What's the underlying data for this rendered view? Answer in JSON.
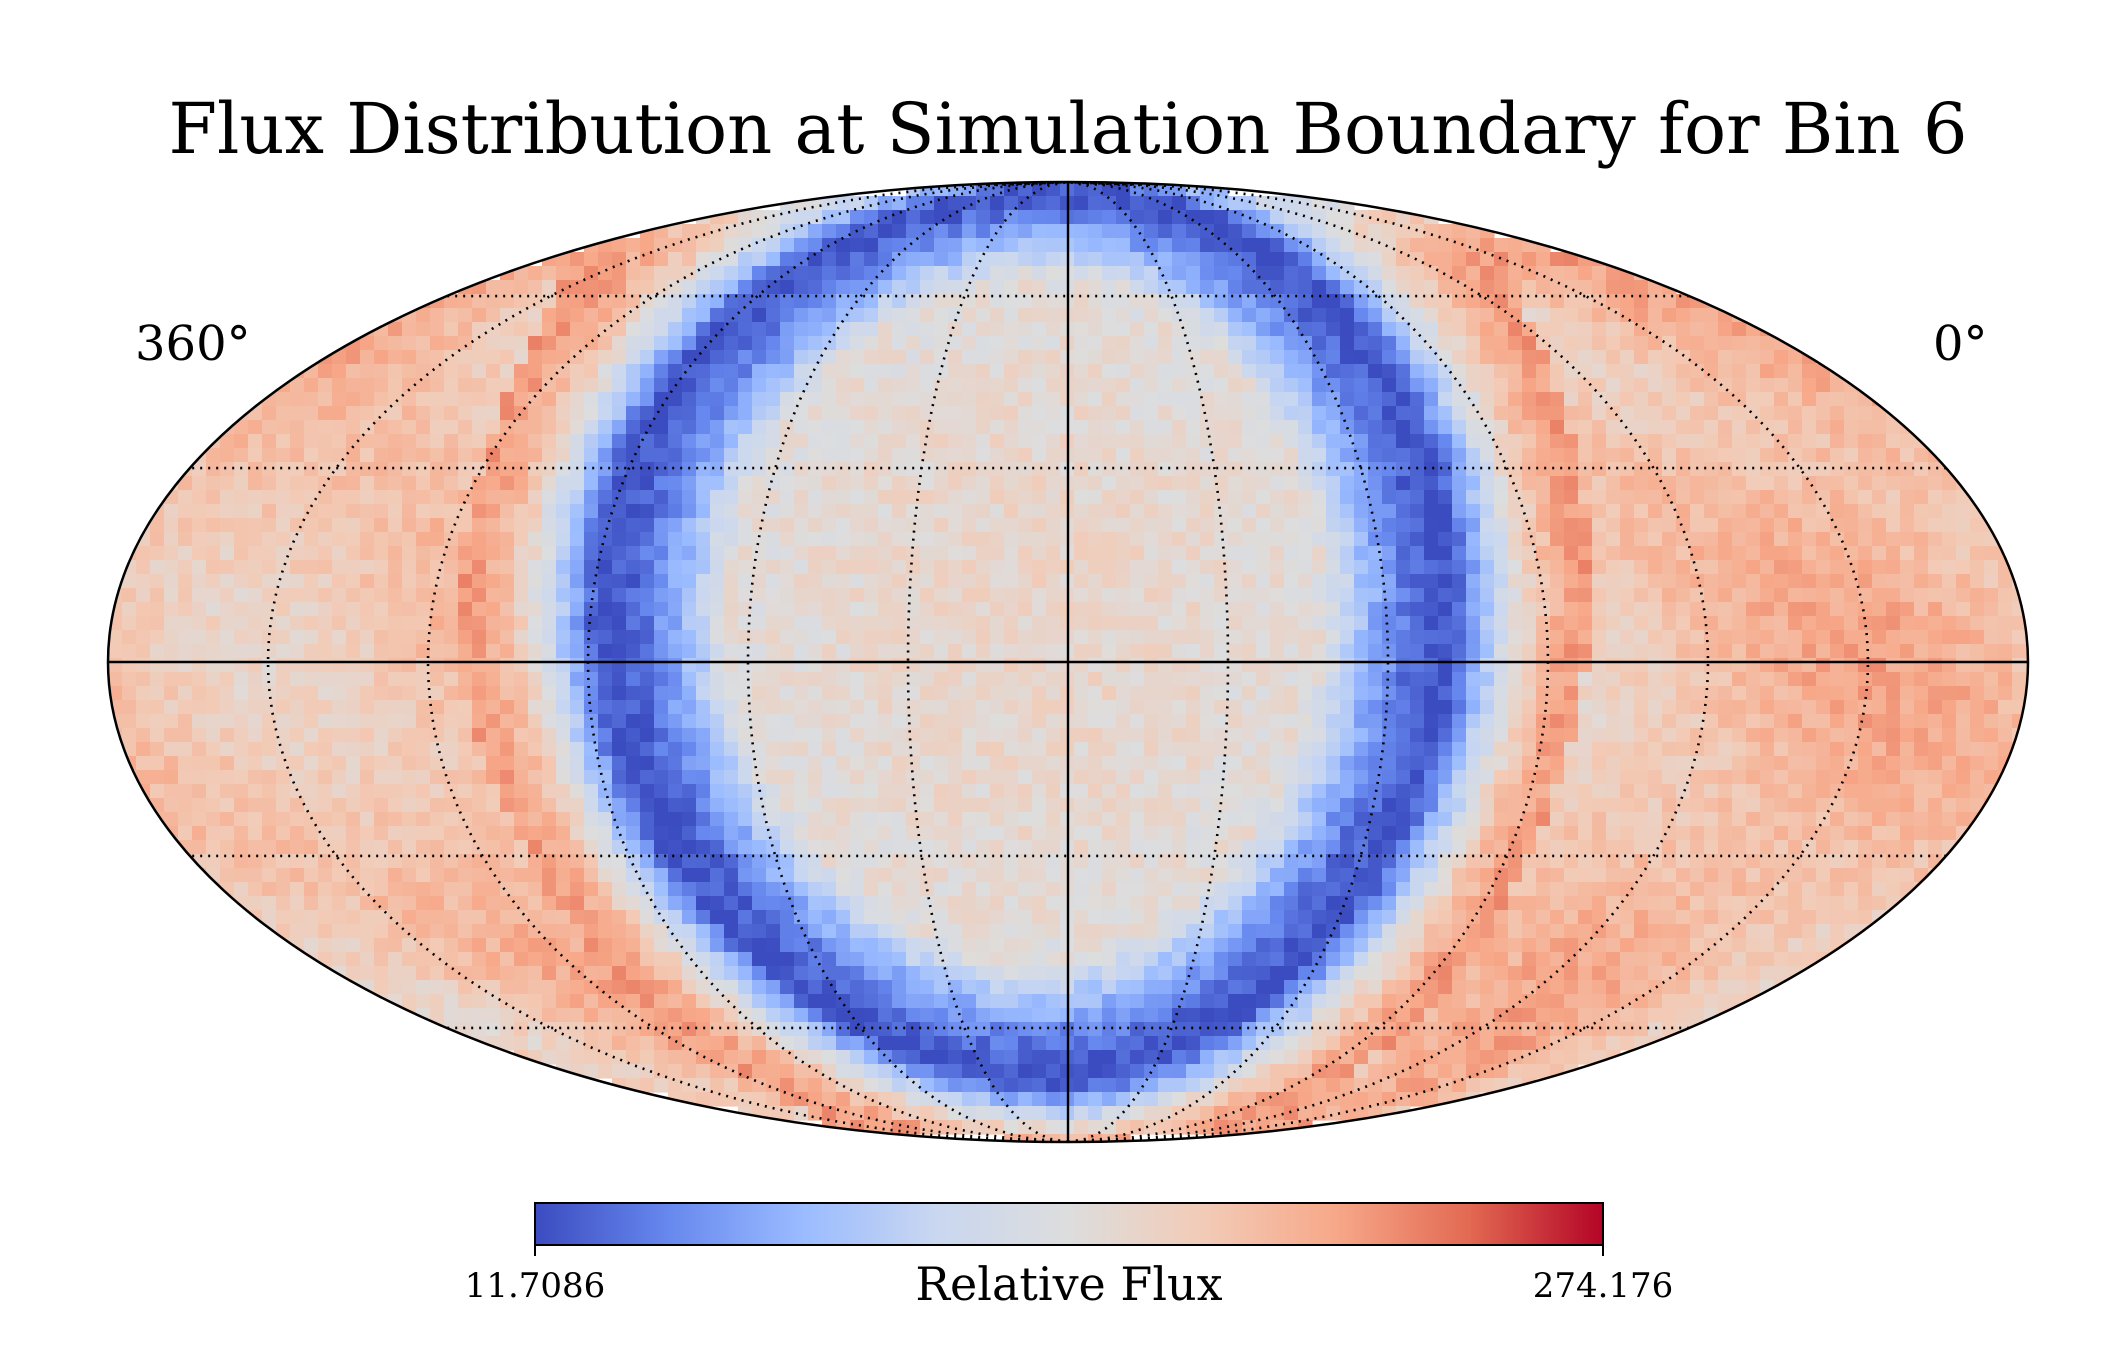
{
  "chart_data": {
    "type": "heatmap",
    "projection": "mollweide",
    "title": "Flux Distribution at Simulation Boundary for Bin 6",
    "lon_labels": {
      "left": "360°",
      "right": "0°"
    },
    "colorbar": {
      "label": "Relative Flux",
      "min_label": "11.7086",
      "max_label": "274.176",
      "min": 11.7086,
      "max": 274.176,
      "colormap": "coolwarm",
      "orientation": "horizontal"
    },
    "colormap_stops": [
      "#3b4cc0",
      "#6788ee",
      "#9abbff",
      "#c9d7f0",
      "#dddddd",
      "#f2cbb7",
      "#f7a889",
      "#e26952",
      "#b40426"
    ],
    "graticule": {
      "grid": true,
      "meridian_step_deg": 30,
      "parallel_step_deg": 30,
      "style": "dotted",
      "center_meridian_solid": true,
      "equator_solid": true
    },
    "flux_model": {
      "description_source": "read off colormap",
      "background_level": 185,
      "dipole_region_level": 150,
      "min_band_level": 15,
      "max_level": 274
    }
  }
}
